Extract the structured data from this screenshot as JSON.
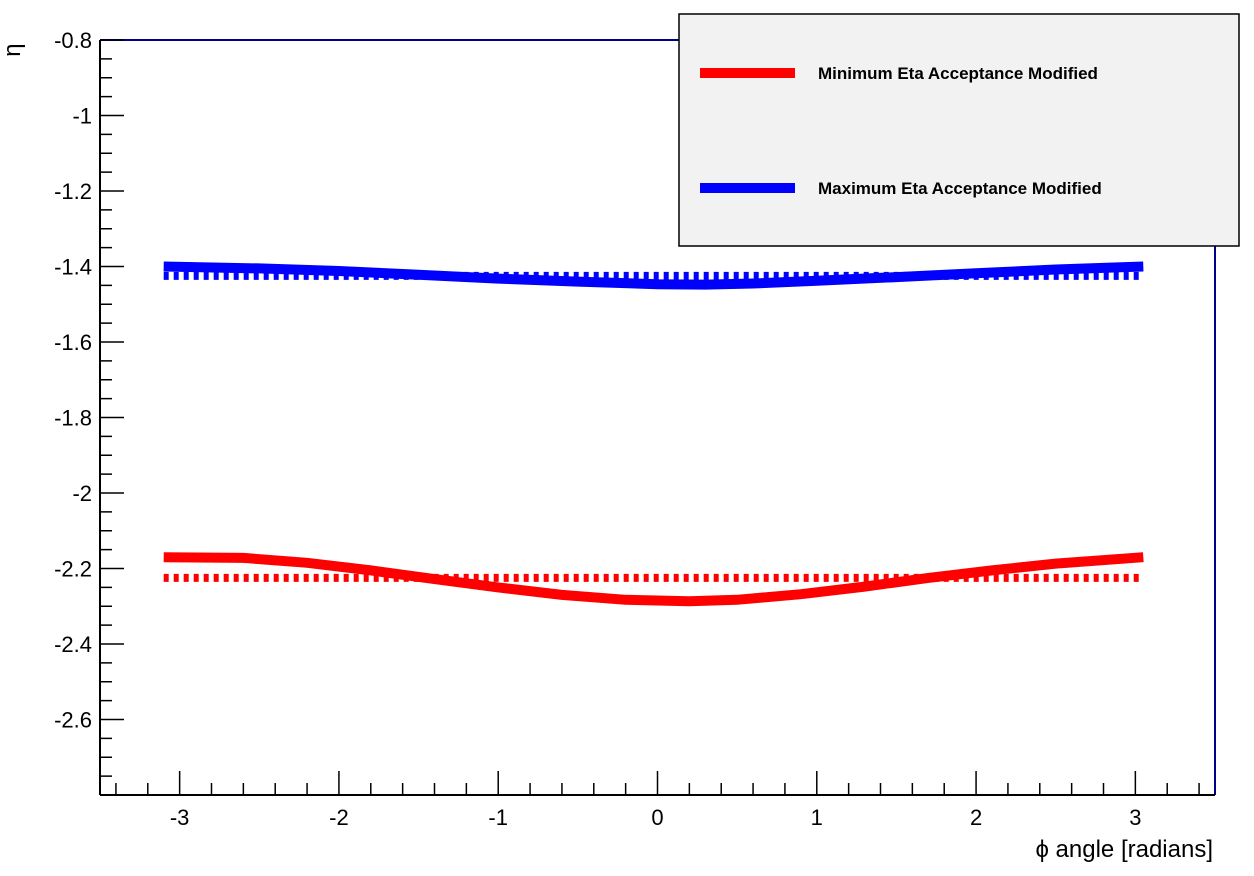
{
  "chart_data": {
    "type": "line",
    "xlabel": "ϕ angle [radians]",
    "ylabel": "η",
    "xlim": [
      -3.5,
      3.5
    ],
    "ylim": [
      -2.8,
      -0.8
    ],
    "x_ticks": [
      -3,
      -2,
      -1,
      0,
      1,
      2,
      3
    ],
    "y_ticks": [
      -0.8,
      -1,
      -1.2,
      -1.4,
      -1.6,
      -1.8,
      -2,
      -2.2,
      -2.4,
      -2.6
    ],
    "grid": false,
    "legend_position": "top-right",
    "legend": [
      {
        "label": "Minimum Eta Acceptance Modified",
        "color": "#ff0000"
      },
      {
        "label": "Maximum Eta Acceptance Modified",
        "color": "#0000ff"
      }
    ],
    "series": [
      {
        "color": "#0000ff",
        "style": "solid",
        "x": [
          -3.1,
          -2.5,
          -2,
          -1.5,
          -1,
          -0.5,
          0,
          0.3,
          0.6,
          1,
          1.5,
          2,
          2.5,
          3.05
        ],
        "y": [
          -1.4,
          -1.405,
          -1.412,
          -1.422,
          -1.432,
          -1.44,
          -1.447,
          -1.448,
          -1.445,
          -1.438,
          -1.428,
          -1.418,
          -1.408,
          -1.4
        ]
      },
      {
        "color": "#0000ff",
        "style": "dotted",
        "x": [
          -3.1,
          3.05
        ],
        "y": [
          -1.425,
          -1.425
        ]
      },
      {
        "color": "#ff0000",
        "style": "solid",
        "x": [
          -3.1,
          -2.6,
          -2.2,
          -1.8,
          -1.4,
          -1,
          -0.6,
          -0.2,
          0.2,
          0.5,
          0.9,
          1.3,
          1.7,
          2.1,
          2.5,
          3.05
        ],
        "y": [
          -2.17,
          -2.172,
          -2.185,
          -2.205,
          -2.228,
          -2.25,
          -2.27,
          -2.283,
          -2.287,
          -2.283,
          -2.268,
          -2.248,
          -2.225,
          -2.205,
          -2.187,
          -2.17
        ]
      },
      {
        "color": "#ff0000",
        "style": "dotted",
        "x": [
          -3.1,
          3.05
        ],
        "y": [
          -2.225,
          -2.225
        ]
      }
    ]
  }
}
